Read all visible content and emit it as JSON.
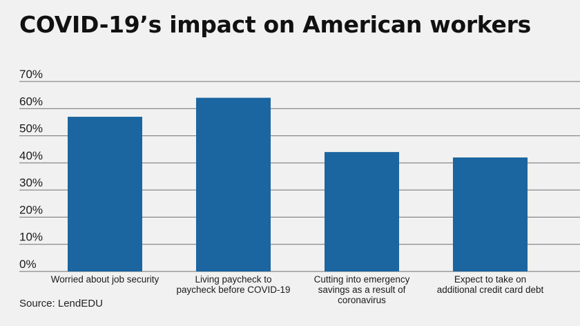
{
  "title": "COVID-19’s impact on American workers",
  "source": "Source: LendEDU",
  "colors": {
    "bar": "#1b65a0",
    "grid": "#6f6f6f",
    "background": "#f0f1f0"
  },
  "chart_data": {
    "type": "bar",
    "title": "COVID-19’s impact on American workers",
    "xlabel": "",
    "ylabel": "",
    "ylim": [
      0,
      70
    ],
    "yticks": [
      0,
      10,
      20,
      30,
      40,
      50,
      60,
      70
    ],
    "ytick_labels": [
      "0%",
      "10%",
      "20%",
      "30%",
      "40%",
      "50%",
      "60%",
      "70%"
    ],
    "grid": true,
    "legend": "none",
    "categories": [
      [
        "Worried about job security"
      ],
      [
        "Living paycheck to",
        "paycheck before COVID-19"
      ],
      [
        "Cutting into emergency",
        "savings as a result of",
        "coronavirus"
      ],
      [
        "Expect to take on",
        "additional credit card debt"
      ]
    ],
    "values": [
      57,
      64,
      44,
      42
    ]
  }
}
